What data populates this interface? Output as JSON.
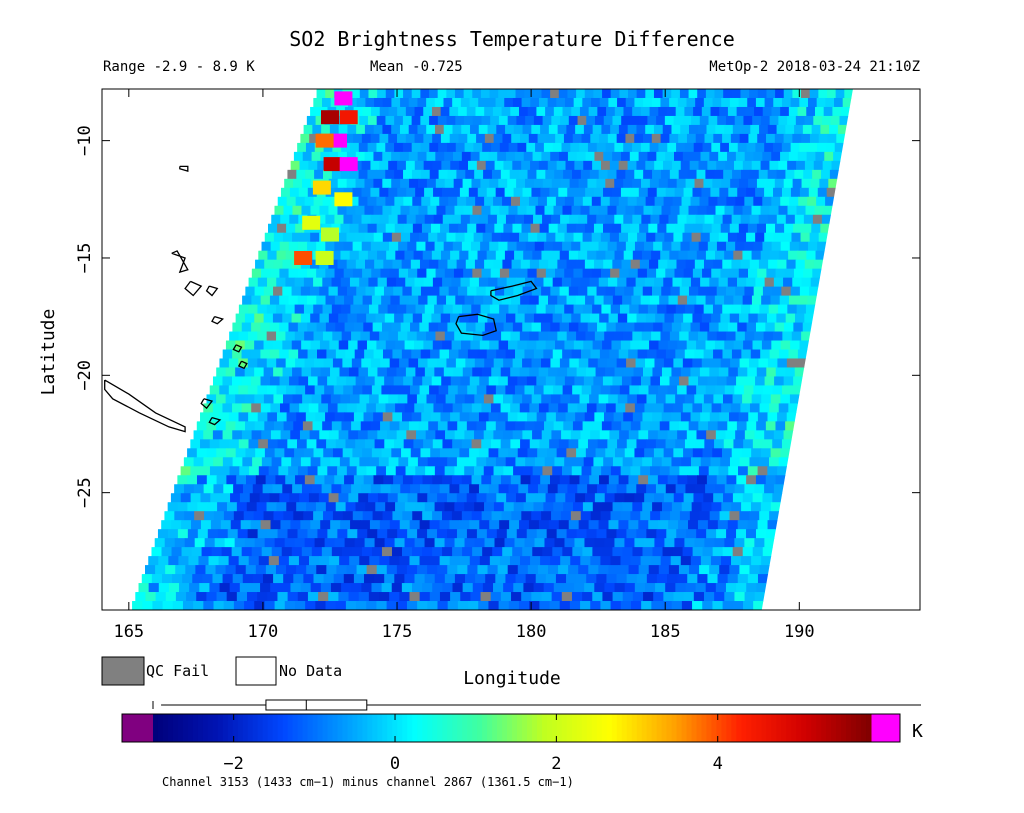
{
  "chart_data": {
    "type": "heatmap",
    "title": "SO2 Brightness Temperature Difference",
    "range_text": "Range -2.9 - 8.9 K",
    "mean_text": "Mean -0.725",
    "sat_text": "MetOp-2 2018-03-24 21:10Z",
    "xlabel": "Longitude",
    "ylabel": "Latitude",
    "xlim": [
      164,
      194.5
    ],
    "ylim": [
      -30,
      -7.8
    ],
    "xticks": [
      165,
      170,
      175,
      180,
      185,
      190
    ],
    "xtick_labels": [
      "165",
      "170",
      "175",
      "180",
      "185",
      "190"
    ],
    "yticks": [
      -10,
      -15,
      -20,
      -25
    ],
    "ytick_labels": [
      "−10",
      "−15",
      "−20",
      "−25"
    ],
    "swath": {
      "top_lat": -7.8,
      "top_lon_left": 172.0,
      "top_lon_right": 192.0,
      "bottom_lat": -30,
      "bottom_lon_left": 165.0,
      "bottom_lon_right": 188.6
    },
    "field_mean": -0.725,
    "plume_cells": [
      {
        "lon": 173.0,
        "lat": -8.2,
        "value": 8.9
      },
      {
        "lon": 172.5,
        "lat": -9.0,
        "value": 5.5
      },
      {
        "lon": 173.2,
        "lat": -9.0,
        "value": 4.5
      },
      {
        "lon": 172.8,
        "lat": -10.0,
        "value": 8.9
      },
      {
        "lon": 172.3,
        "lat": -10.0,
        "value": 3.8
      },
      {
        "lon": 172.6,
        "lat": -11.0,
        "value": 5.2
      },
      {
        "lon": 173.2,
        "lat": -11.0,
        "value": 8.9
      },
      {
        "lon": 172.2,
        "lat": -12.0,
        "value": 3.0
      },
      {
        "lon": 173.0,
        "lat": -12.5,
        "value": 2.7
      },
      {
        "lon": 171.8,
        "lat": -13.5,
        "value": 2.3
      },
      {
        "lon": 172.5,
        "lat": -14.0,
        "value": 1.8
      },
      {
        "lon": 171.5,
        "lat": -15.0,
        "value": 4.0
      },
      {
        "lon": 172.3,
        "lat": -15.0,
        "value": 2.0
      }
    ],
    "colorbar": {
      "min": -3.0,
      "max": 5.9,
      "ticks": [
        -2,
        0,
        2,
        4
      ],
      "tick_labels": [
        "−2",
        "0",
        "2",
        "4"
      ],
      "unit": "K",
      "colors": [
        "#00007a",
        "#0014b4",
        "#0048ff",
        "#00a0ff",
        "#00ffff",
        "#40ffa0",
        "#c0ff20",
        "#ffff00",
        "#ffa000",
        "#ff2000",
        "#d00000",
        "#800000"
      ],
      "under_color": "#800080",
      "over_color": "#ff00ff",
      "box": {
        "q1": -1.6,
        "median": -1.1,
        "q3": -0.35,
        "whisker_low": -2.9,
        "whisker_high": 8.9
      }
    },
    "legend": {
      "qc_fail_label": "QC Fail",
      "no_data_label": "No Data",
      "qc_fail_color": "#808080",
      "no_data_color": "#ffffff"
    },
    "footnote": "Channel 3153 (1433 cm−1) minus channel 2867 (1361.5 cm−1)",
    "coastlines": [
      {
        "name": "new-caledonia",
        "pts": [
          [
            164.1,
            -20.2
          ],
          [
            165.0,
            -20.8
          ],
          [
            166.0,
            -21.6
          ],
          [
            167.1,
            -22.2
          ],
          [
            167.1,
            -22.4
          ],
          [
            166.5,
            -22.2
          ],
          [
            165.4,
            -21.6
          ],
          [
            164.4,
            -21.0
          ],
          [
            164.1,
            -20.6
          ],
          [
            164.1,
            -20.2
          ]
        ]
      },
      {
        "name": "vanuatu-north",
        "pts": [
          [
            166.6,
            -14.8
          ],
          [
            167.1,
            -15.0
          ],
          [
            166.9,
            -15.6
          ],
          [
            167.2,
            -15.5
          ],
          [
            166.8,
            -14.7
          ],
          [
            166.6,
            -14.8
          ]
        ]
      },
      {
        "name": "vanuatu-mid",
        "pts": [
          [
            167.3,
            -16.0
          ],
          [
            167.7,
            -16.2
          ],
          [
            167.4,
            -16.6
          ],
          [
            167.1,
            -16.3
          ],
          [
            167.3,
            -16.0
          ]
        ]
      },
      {
        "name": "vanuatu-small",
        "pts": [
          [
            168.0,
            -16.2
          ],
          [
            168.3,
            -16.3
          ],
          [
            168.1,
            -16.6
          ],
          [
            167.9,
            -16.4
          ],
          [
            168.0,
            -16.2
          ]
        ]
      },
      {
        "name": "efate",
        "pts": [
          [
            168.2,
            -17.5
          ],
          [
            168.5,
            -17.6
          ],
          [
            168.3,
            -17.8
          ],
          [
            168.1,
            -17.7
          ],
          [
            168.2,
            -17.5
          ]
        ]
      },
      {
        "name": "erromango",
        "pts": [
          [
            169.0,
            -18.7
          ],
          [
            169.2,
            -18.8
          ],
          [
            169.1,
            -19.0
          ],
          [
            168.9,
            -18.9
          ],
          [
            169.0,
            -18.7
          ]
        ]
      },
      {
        "name": "tanna",
        "pts": [
          [
            169.2,
            -19.4
          ],
          [
            169.4,
            -19.5
          ],
          [
            169.3,
            -19.7
          ],
          [
            169.1,
            -19.6
          ],
          [
            169.2,
            -19.4
          ]
        ]
      },
      {
        "name": "loyalty-1",
        "pts": [
          [
            167.8,
            -21.0
          ],
          [
            168.1,
            -21.1
          ],
          [
            167.9,
            -21.4
          ],
          [
            167.7,
            -21.2
          ],
          [
            167.8,
            -21.0
          ]
        ]
      },
      {
        "name": "loyalty-2",
        "pts": [
          [
            168.1,
            -21.8
          ],
          [
            168.4,
            -21.9
          ],
          [
            168.2,
            -22.1
          ],
          [
            168.0,
            -22.0
          ],
          [
            168.1,
            -21.8
          ]
        ]
      },
      {
        "name": "rotuma",
        "pts": [
          [
            166.9,
            -11.1
          ],
          [
            167.2,
            -11.1
          ],
          [
            167.2,
            -11.3
          ],
          [
            166.9,
            -11.2
          ],
          [
            166.9,
            -11.1
          ]
        ]
      },
      {
        "name": "viti-levu",
        "pts": [
          [
            177.3,
            -17.5
          ],
          [
            178.0,
            -17.4
          ],
          [
            178.6,
            -17.6
          ],
          [
            178.7,
            -18.1
          ],
          [
            178.2,
            -18.3
          ],
          [
            177.4,
            -18.2
          ],
          [
            177.2,
            -17.8
          ],
          [
            177.3,
            -17.5
          ]
        ]
      },
      {
        "name": "vanua-levu",
        "pts": [
          [
            178.5,
            -16.4
          ],
          [
            179.3,
            -16.2
          ],
          [
            180.0,
            -16.0
          ],
          [
            180.2,
            -16.3
          ],
          [
            179.5,
            -16.6
          ],
          [
            178.8,
            -16.8
          ],
          [
            178.5,
            -16.6
          ],
          [
            178.5,
            -16.4
          ]
        ]
      }
    ]
  }
}
